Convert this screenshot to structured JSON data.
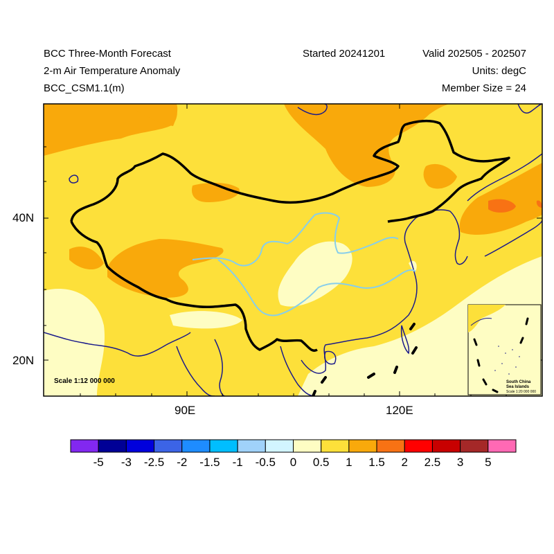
{
  "header": {
    "title": "BCC Three-Month Forecast",
    "subtitle": "2-m Air Temperature Anomaly",
    "model": "BCC_CSM1.1(m)",
    "started": "Started 20241201",
    "valid": "Valid 202505 - 202507",
    "units": "Units: degC",
    "member_size": "Member Size = 24"
  },
  "map": {
    "lat_ticks": [
      "40N",
      "20N"
    ],
    "lon_ticks": [
      "90E",
      "120E"
    ],
    "scale_label": "Scale 1:12 000 000",
    "inset": {
      "title_line1": "South China",
      "title_line2": "Sea Islands",
      "scale_label": "Scale 1:20 000 000"
    },
    "colors": {
      "background_field": "#fde03a",
      "anomaly_1_1_5": "#f9a90b",
      "anomaly_1_5_2": "#f87214",
      "anomaly_0_0_5": "#fefdc3",
      "border": "#000000",
      "coastline": "#1a1a8a",
      "rivers": "#87ceeb"
    }
  },
  "colorbar": {
    "colors": [
      "#8228f0",
      "#000096",
      "#0000dc",
      "#3c64e6",
      "#1e8cff",
      "#00beff",
      "#a0d2fa",
      "#d2f5ff",
      "#fefdc3",
      "#fde03a",
      "#f9a90b",
      "#f87214",
      "#ff0000",
      "#c80000",
      "#a52828",
      "#ff69b4"
    ],
    "labels": [
      "-5",
      "-3",
      "-2.5",
      "-2",
      "-1.5",
      "-1",
      "-0.5",
      "0",
      "0.5",
      "1",
      "1.5",
      "2",
      "2.5",
      "3",
      "5"
    ]
  }
}
